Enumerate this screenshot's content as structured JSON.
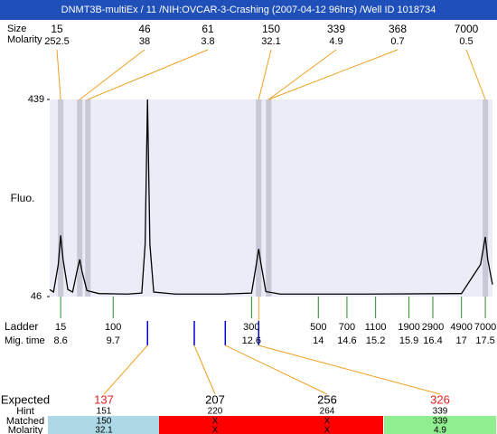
{
  "header": {
    "title": "DNMT3B-multiEx / 11 /NIH:OVCAR-3-Crashing (2007-04-12 96hrs) /Well ID 1018734",
    "size_label": "Size",
    "molarity_label": "Molarity"
  },
  "chart_data": {
    "type": "line",
    "y_label": "Fluo.",
    "xlim": [
      8.37,
      17.65
    ],
    "ylim": [
      46,
      439
    ],
    "yticks": [
      46,
      439
    ],
    "x": [
      8.37,
      8.45,
      8.55,
      8.6,
      8.65,
      8.75,
      8.85,
      8.95,
      9.0,
      9.05,
      9.15,
      9.4,
      10.0,
      10.3,
      10.37,
      10.42,
      10.47,
      10.55,
      11,
      12,
      12.6,
      12.7,
      12.75,
      12.8,
      12.9,
      13.2,
      15,
      17,
      17.4,
      17.5,
      17.55,
      17.65
    ],
    "series": [
      {
        "color": "#000000",
        "values": [
          60,
          55,
          110,
          168,
          120,
          60,
          55,
          100,
          120,
          95,
          58,
          52,
          51,
          53,
          150,
          439,
          150,
          55,
          51,
          51,
          53,
          110,
          141,
          110,
          56,
          51,
          51,
          52,
          110,
          165,
          120,
          70
        ]
      }
    ],
    "peaks": {
      "sizes": [
        15,
        46,
        61,
        150,
        339,
        368,
        7000
      ],
      "molarity": [
        252.5,
        38,
        3.8,
        32.1,
        4.9,
        0.7,
        0.5
      ],
      "times": [
        8.6,
        9.0,
        9.17,
        12.75,
        12.96,
        12.96,
        17.5
      ]
    },
    "ladder": {
      "label": "Ladder",
      "time_label": "Mig. time",
      "sizes": [
        15,
        100,
        300,
        500,
        700,
        1100,
        1900,
        2900,
        4900,
        7000
      ],
      "times": [
        8.6,
        9.7,
        12.6,
        14,
        14.6,
        15.2,
        15.9,
        16.4,
        17,
        17.5
      ]
    },
    "expected": {
      "labels": [
        "Expected",
        "Hint",
        "Matched",
        "Molarity"
      ],
      "sizes": [
        137,
        207,
        256,
        326
      ],
      "size_colors": [
        "#e02020",
        "#000000",
        "#000000",
        "#e02020"
      ],
      "times": [
        10.42,
        11.4,
        12.05,
        12.75
      ],
      "hint": [
        151,
        220,
        264,
        339
      ],
      "matched": [
        150,
        "X",
        "X",
        339
      ],
      "molarity": [
        32.1,
        "X",
        "X",
        4.9
      ],
      "cell_colors": [
        "#add8e6",
        "#ff0000",
        "#ff0000",
        "#90ee90"
      ]
    }
  }
}
